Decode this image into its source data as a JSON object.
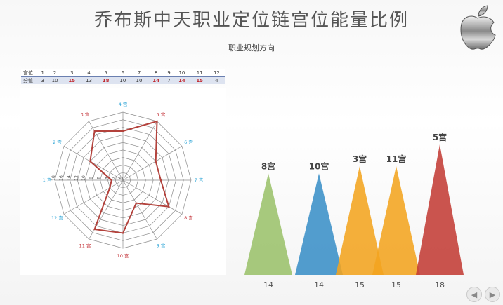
{
  "header": {
    "title": "乔布斯中天职业定位链宫位能量比例",
    "subtitle": "职业规划方向"
  },
  "logo": {
    "icon": "apple-logo-icon"
  },
  "palace_table": {
    "row_a_label": "宫位",
    "row_b_label": "分值",
    "palaces": [
      "1",
      "2",
      "3",
      "4",
      "5",
      "6",
      "7",
      "8",
      "9",
      "10",
      "11",
      "12"
    ],
    "scores": [
      "3",
      "10",
      "15",
      "13",
      "18",
      "10",
      "10",
      "14",
      "7",
      "14",
      "15",
      "4"
    ],
    "highlight": [
      false,
      false,
      true,
      false,
      true,
      false,
      false,
      true,
      false,
      true,
      true,
      false
    ]
  },
  "chart_data": [
    {
      "type": "radar",
      "axes": [
        "1 宫",
        "2 宫",
        "3 宫",
        "4 宫",
        "5 宫",
        "6 宫",
        "7 宫",
        "8 宫",
        "9 宫",
        "10 宫",
        "11 宫",
        "12 宫"
      ],
      "values": [
        3,
        10,
        15,
        13,
        18,
        10,
        10,
        14,
        7,
        14,
        15,
        4
      ],
      "rlim": [
        0,
        18
      ],
      "ticks": [
        "0",
        "2",
        "4",
        "6",
        "8",
        "10",
        "12",
        "14",
        "16",
        "18"
      ],
      "axis_label_colors": [
        "#2aa3d6",
        "#2aa3d6",
        "#c0272d",
        "#2aa3d6",
        "#c0272d",
        "#2aa3d6",
        "#2aa3d6",
        "#c0272d",
        "#2aa3d6",
        "#c0272d",
        "#c0272d",
        "#2aa3d6"
      ],
      "line_color": "#b3423c",
      "grid": true
    },
    {
      "type": "triangle",
      "categories": [
        "8宫",
        "10宫",
        "3宫",
        "11宫",
        "5宫"
      ],
      "values": [
        14,
        14,
        15,
        15,
        18
      ],
      "value_labels": [
        "14",
        "14",
        "15",
        "15",
        "18"
      ],
      "colors": [
        "#9bc26b",
        "#3a8fc7",
        "#f3a41f",
        "#f3a41f",
        "#c33c36"
      ],
      "ylim": [
        0,
        18
      ],
      "grid": false
    }
  ],
  "nav": {
    "prev_icon": "arrow-left-icon",
    "next_icon": "arrow-right-icon"
  }
}
